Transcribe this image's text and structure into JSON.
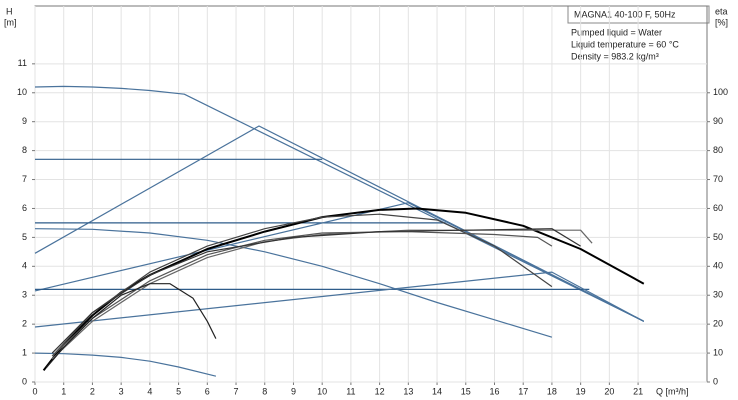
{
  "chart_data": {
    "type": "line",
    "model": "MAGNA1 40-100 F, 50Hz",
    "notes": [
      "Pumped liquid = Water",
      "Liquid temperature = 60 °C",
      "Density = 983.2 kg/m³"
    ],
    "ylabel": "H",
    "yunit": "[m]",
    "y2label": "eta",
    "y2unit": "[%]",
    "xlabel": "Q [m³/h]",
    "xlim": [
      0,
      23.4
    ],
    "xticks": [
      0,
      1,
      2,
      3,
      4,
      5,
      6,
      7,
      8,
      9,
      10,
      11,
      12,
      13,
      14,
      15,
      16,
      17,
      18,
      19,
      20,
      21
    ],
    "ylim": [
      0,
      13
    ],
    "yticks": [
      0,
      1,
      2,
      3,
      4,
      5,
      6,
      7,
      8,
      9,
      10,
      11
    ],
    "y2lim": [
      0,
      130
    ],
    "y2ticks": [
      0,
      10,
      20,
      30,
      40,
      50,
      60,
      70,
      80,
      90,
      100
    ],
    "grid": true,
    "series": [
      {
        "color": "#4a739c",
        "x": [
          0,
          1,
          2,
          3,
          4,
          5.2,
          21.2
        ],
        "values": [
          10.2,
          10.22,
          10.2,
          10.15,
          10.08,
          9.95,
          2.1
        ]
      },
      {
        "color": "#2e5c8a",
        "x": [
          0,
          10
        ],
        "values": [
          7.7,
          7.7
        ]
      },
      {
        "color": "#4a739c",
        "x": [
          0,
          7.8,
          21.2
        ],
        "values": [
          4.45,
          8.85,
          2.1
        ]
      },
      {
        "color": "#2e5c8a",
        "x": [
          0,
          14.3
        ],
        "values": [
          5.5,
          5.5
        ]
      },
      {
        "color": "#4a739c",
        "x": [
          0,
          13,
          21.2
        ],
        "values": [
          3.15,
          6.2,
          2.1
        ]
      },
      {
        "color": "#2e5c8a",
        "x": [
          0,
          19.3
        ],
        "values": [
          3.2,
          3.2
        ]
      },
      {
        "color": "#4a739c",
        "x": [
          0,
          18,
          21.2
        ],
        "values": [
          1.9,
          3.8,
          2.1
        ]
      },
      {
        "color": "#4a739c",
        "x": [
          0,
          2,
          4,
          6,
          8,
          10,
          12,
          14,
          16,
          18
        ],
        "values": [
          5.3,
          5.28,
          5.15,
          4.9,
          4.5,
          4.0,
          3.4,
          2.75,
          2.15,
          1.55
        ]
      },
      {
        "color": "#4a739c",
        "x": [
          0,
          1,
          2,
          3,
          4,
          5,
          6.3
        ],
        "values": [
          1.0,
          0.98,
          0.93,
          0.85,
          0.72,
          0.52,
          0.2
        ]
      },
      {
        "color": "#000000",
        "axis": "y2",
        "x": [
          0.3,
          1,
          2,
          3,
          4,
          6,
          8,
          10,
          12,
          13.3,
          15,
          17,
          19,
          21.2
        ],
        "values": [
          4,
          13,
          23,
          31,
          37,
          46,
          52,
          57,
          59.5,
          60,
          58.5,
          54,
          46,
          34
        ]
      },
      {
        "color": "#444444",
        "axis": "y2",
        "x": [
          0.6,
          2,
          4,
          6,
          8,
          10,
          12,
          14,
          16,
          18
        ],
        "values": [
          9,
          24,
          38,
          47,
          53,
          57,
          58,
          56,
          47,
          33
        ]
      },
      {
        "color": "#555555",
        "axis": "y2",
        "x": [
          0.6,
          2,
          4,
          6,
          8,
          10,
          13,
          16,
          17.5,
          18
        ],
        "values": [
          9,
          22,
          35,
          44,
          49,
          51.5,
          52,
          51,
          50,
          47
        ]
      },
      {
        "color": "#666666",
        "axis": "y2",
        "x": [
          0.6,
          2,
          4,
          6,
          8,
          10,
          13,
          16,
          19,
          19.4
        ],
        "values": [
          8,
          21,
          34,
          43,
          48.5,
          51,
          52.5,
          52.5,
          52.5,
          48
        ]
      },
      {
        "color": "#333333",
        "axis": "y2",
        "x": [
          0.6,
          2,
          4,
          6,
          9,
          12,
          15,
          18,
          19
        ],
        "values": [
          10,
          24,
          37,
          45,
          50,
          52,
          52.5,
          53,
          47
        ]
      },
      {
        "color": "#222222",
        "axis": "y2",
        "x": [
          0.4,
          1,
          2,
          3,
          4,
          4.7,
          5.5,
          6,
          6.3
        ],
        "values": [
          5,
          12,
          22,
          30,
          34,
          34,
          29,
          21,
          15
        ]
      }
    ]
  }
}
